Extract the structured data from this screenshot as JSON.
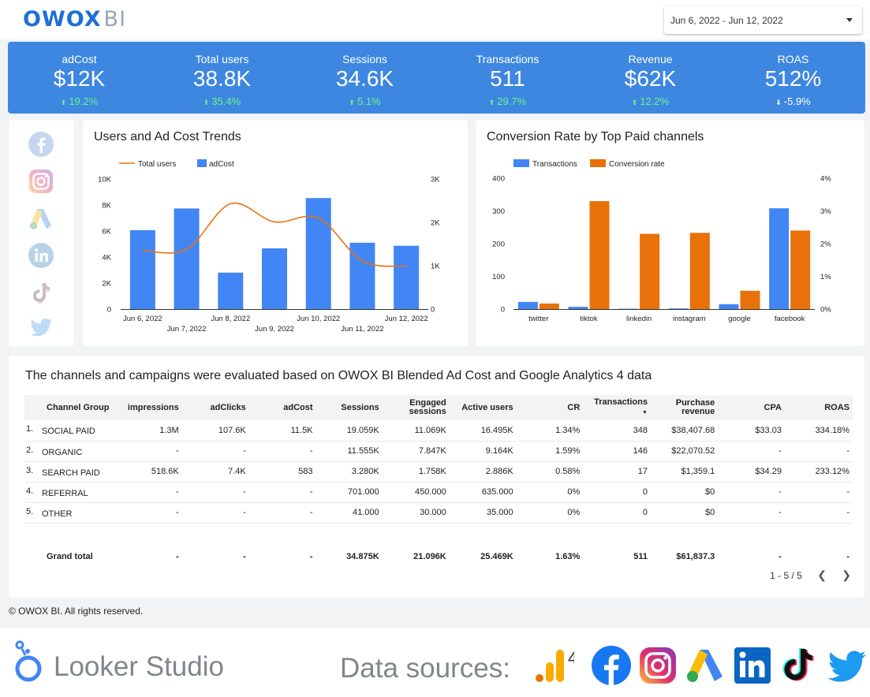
{
  "header": {
    "logo_main": "OWOX",
    "logo_suffix": "BI",
    "date_range": "Jun 6, 2022 - Jun 12, 2022"
  },
  "kpis": [
    {
      "label": "adCost",
      "value": "$12K",
      "delta": "19.2%",
      "direction": "up"
    },
    {
      "label": "Total users",
      "value": "38.8K",
      "delta": "35.4%",
      "direction": "up"
    },
    {
      "label": "Sessions",
      "value": "34.6K",
      "delta": "5.1%",
      "direction": "up"
    },
    {
      "label": "Transactions",
      "value": "511",
      "delta": "29.7%",
      "direction": "up"
    },
    {
      "label": "Revenue",
      "value": "$62K",
      "delta": "12.2%",
      "direction": "up"
    },
    {
      "label": "ROAS",
      "value": "512%",
      "delta": "-5.9%",
      "direction": "down"
    }
  ],
  "social_icons": [
    "facebook-icon",
    "instagram-icon",
    "google-ads-icon",
    "linkedin-icon",
    "tiktok-icon",
    "twitter-icon"
  ],
  "chart_data": [
    {
      "type": "bar",
      "title": "Users and Ad Cost Trends",
      "categories": [
        "Jun 6, 2022",
        "Jun 7, 2022",
        "Jun 8, 2022",
        "Jun 9, 2022",
        "Jun 10, 2022",
        "Jun 11, 2022",
        "Jun 12, 2022"
      ],
      "series": [
        {
          "name": "Total users",
          "type": "line",
          "axis": "left",
          "color": "#e8710a",
          "values": [
            4500,
            4600,
            8100,
            6700,
            7000,
            3700,
            3300
          ]
        },
        {
          "name": "adCost",
          "type": "bar",
          "axis": "right",
          "color": "#4285f4",
          "values": [
            1820,
            2320,
            840,
            1400,
            2560,
            1530,
            1460
          ]
        }
      ],
      "y_left": {
        "min": 0,
        "max": 10000,
        "ticks": [
          "0",
          "2K",
          "4K",
          "6K",
          "8K",
          "10K"
        ]
      },
      "y_right": {
        "min": 0,
        "max": 3000,
        "ticks": [
          "0",
          "1K",
          "2K",
          "3K"
        ]
      },
      "legend": "top-left",
      "grid": false
    },
    {
      "type": "bar",
      "title": "Conversion Rate by Top Paid channels",
      "categories": [
        "twitter",
        "tiktok",
        "linkedin",
        "instagram",
        "google",
        "facebook"
      ],
      "series": [
        {
          "name": "Transactions",
          "axis": "left",
          "color": "#4285f4",
          "values": [
            22,
            7,
            1,
            2,
            15,
            308
          ]
        },
        {
          "name": "Conversion rate",
          "axis": "right",
          "color": "#e8710a",
          "values": [
            0.17,
            3.3,
            2.3,
            2.33,
            0.56,
            2.4
          ]
        }
      ],
      "y_left": {
        "min": 0,
        "max": 400,
        "ticks": [
          "0",
          "100",
          "200",
          "300",
          "400"
        ]
      },
      "y_right": {
        "min": 0,
        "max": 4,
        "ticks": [
          "0%",
          "1%",
          "2%",
          "3%",
          "4%"
        ]
      },
      "legend": "top-left",
      "grid": false
    }
  ],
  "table": {
    "title": "The channels and campaigns were evaluated based on OWOX BI Blended Ad Cost and Google Analytics 4 data",
    "columns": [
      "Channel Group",
      "impressions",
      "adClicks",
      "adCost",
      "Sessions",
      "Engaged sessions",
      "Active users",
      "CR",
      "Transactions",
      "Purchase revenue",
      "CPA",
      "ROAS"
    ],
    "rows": [
      {
        "index": "1.",
        "cells": [
          "SOCIAL PAID",
          "1.3M",
          "107.6K",
          "11.5K",
          "19.059K",
          "11.069K",
          "16.495K",
          "1.34%",
          "348",
          "$38,407.68",
          "$33.03",
          "334.18%"
        ]
      },
      {
        "index": "2.",
        "cells": [
          "ORGANIC",
          "-",
          "-",
          "-",
          "11.555K",
          "7.847K",
          "9.164K",
          "1.59%",
          "146",
          "$22,070.52",
          "-",
          "-"
        ]
      },
      {
        "index": "3.",
        "cells": [
          "SEARCH PAID",
          "518.6K",
          "7.4K",
          "583",
          "3.280K",
          "1.758K",
          "2.886K",
          "0.58%",
          "17",
          "$1,359.1",
          "$34.29",
          "233.12%"
        ]
      },
      {
        "index": "4.",
        "cells": [
          "REFERRAL",
          "-",
          "-",
          "-",
          "701.000",
          "450.000",
          "635.000",
          "0%",
          "0",
          "$0",
          "-",
          "-"
        ]
      },
      {
        "index": "5.",
        "cells": [
          "OTHER",
          "-",
          "-",
          "-",
          "41.000",
          "30.000",
          "35.000",
          "0%",
          "0",
          "$0",
          "-",
          "-"
        ]
      }
    ],
    "total": [
      "Grand total",
      "-",
      "-",
      "-",
      "34.875K",
      "21.096K",
      "25.469K",
      "1.63%",
      "511",
      "$61,837.3",
      "-",
      "-"
    ],
    "pagination": "1 - 5 / 5"
  },
  "copyright": "© OWOX BI. All rights reserved.",
  "footer": {
    "looker_label": "Looker Studio",
    "data_sources_label": "Data sources:",
    "ga_superscript": "4",
    "source_icons": [
      "google-analytics-icon",
      "facebook-icon",
      "instagram-icon",
      "google-ads-icon",
      "linkedin-icon",
      "tiktok-icon",
      "twitter-icon"
    ]
  }
}
